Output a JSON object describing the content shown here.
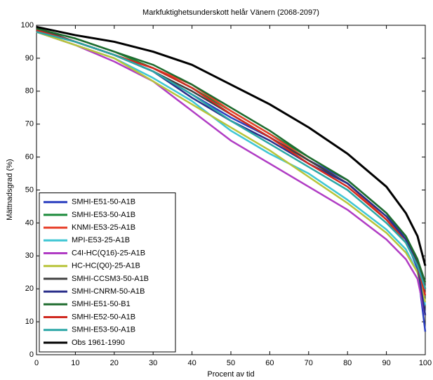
{
  "chart_data": {
    "type": "line",
    "title": "Markfuktighetsunderskott helår Vänern (2068-2097)",
    "xlabel": "Procent av tid",
    "ylabel": "Mättnadsgrad (%)",
    "x": [
      0,
      10,
      20,
      30,
      40,
      50,
      60,
      70,
      80,
      90,
      95,
      98,
      100
    ],
    "xlim": [
      0,
      100
    ],
    "xticks": [
      0,
      10,
      20,
      30,
      40,
      50,
      60,
      70,
      80,
      90,
      100
    ],
    "ylim": [
      0,
      100
    ],
    "yticks": [
      0,
      10,
      20,
      30,
      40,
      50,
      60,
      70,
      80,
      90,
      100
    ],
    "legend": "lower left",
    "series": [
      {
        "name": "SMHI-E51-50-A1B",
        "color": "#2b3fbf",
        "values": [
          99,
          95,
          91,
          86,
          79,
          72,
          66,
          59,
          53,
          43,
          35,
          26,
          7
        ]
      },
      {
        "name": "SMHI-E53-50-A1B",
        "color": "#1a8a3a",
        "values": [
          99,
          96,
          92,
          87,
          81,
          74,
          67,
          60,
          53,
          43,
          36,
          29,
          20
        ]
      },
      {
        "name": "KNMI-E53-25-A1B",
        "color": "#e8402a",
        "values": [
          98.5,
          95,
          91,
          87,
          82,
          74,
          67,
          59,
          52,
          41,
          35,
          28,
          22
        ]
      },
      {
        "name": "MPI-E53-25-A1B",
        "color": "#3fc6d4",
        "values": [
          98,
          94,
          90,
          84,
          77,
          68,
          61,
          55,
          47,
          38,
          32,
          25,
          15
        ]
      },
      {
        "name": "C4I-HC(Q16)-25-A1B",
        "color": "#b03cc4",
        "values": [
          98,
          94,
          89,
          83,
          74,
          65,
          58,
          51,
          44,
          35,
          29,
          23,
          12
        ]
      },
      {
        "name": "HC-HC(Q0)-25-A1B",
        "color": "#b8c43a",
        "values": [
          98,
          94,
          90,
          83,
          76,
          69,
          62,
          54,
          46,
          37,
          31,
          25,
          16
        ]
      },
      {
        "name": "SMHI-CCSM3-50-A1B",
        "color": "#404040",
        "values": [
          99,
          95,
          91,
          86,
          80,
          73,
          66,
          59,
          52,
          42,
          35,
          28,
          20
        ]
      },
      {
        "name": "SMHI-CNRM-50-A1B",
        "color": "#2a2f8a",
        "values": [
          98.5,
          95,
          91,
          86,
          78,
          71,
          65,
          58,
          52,
          42,
          35,
          27,
          12
        ]
      },
      {
        "name": "SMHI-E51-50-B1",
        "color": "#1e6b2e",
        "values": [
          99,
          96,
          92,
          88,
          82,
          75,
          68,
          60,
          53,
          43,
          36,
          29,
          22
        ]
      },
      {
        "name": "SMHI-E52-50-A1B",
        "color": "#d02a20",
        "values": [
          98.5,
          95,
          91,
          87,
          81,
          73,
          66,
          58,
          51,
          41,
          34,
          27,
          18
        ]
      },
      {
        "name": "SMHI-E53-50-A1B",
        "color": "#2aa6a6",
        "values": [
          98,
          95,
          91,
          86,
          79,
          71,
          64,
          57,
          50,
          40,
          34,
          27,
          20
        ]
      },
      {
        "name": "Obs 1961-1990",
        "color": "#000000",
        "values": [
          99.5,
          97,
          95,
          92,
          88,
          82,
          76,
          69,
          61,
          51,
          43,
          36,
          27
        ]
      }
    ]
  }
}
